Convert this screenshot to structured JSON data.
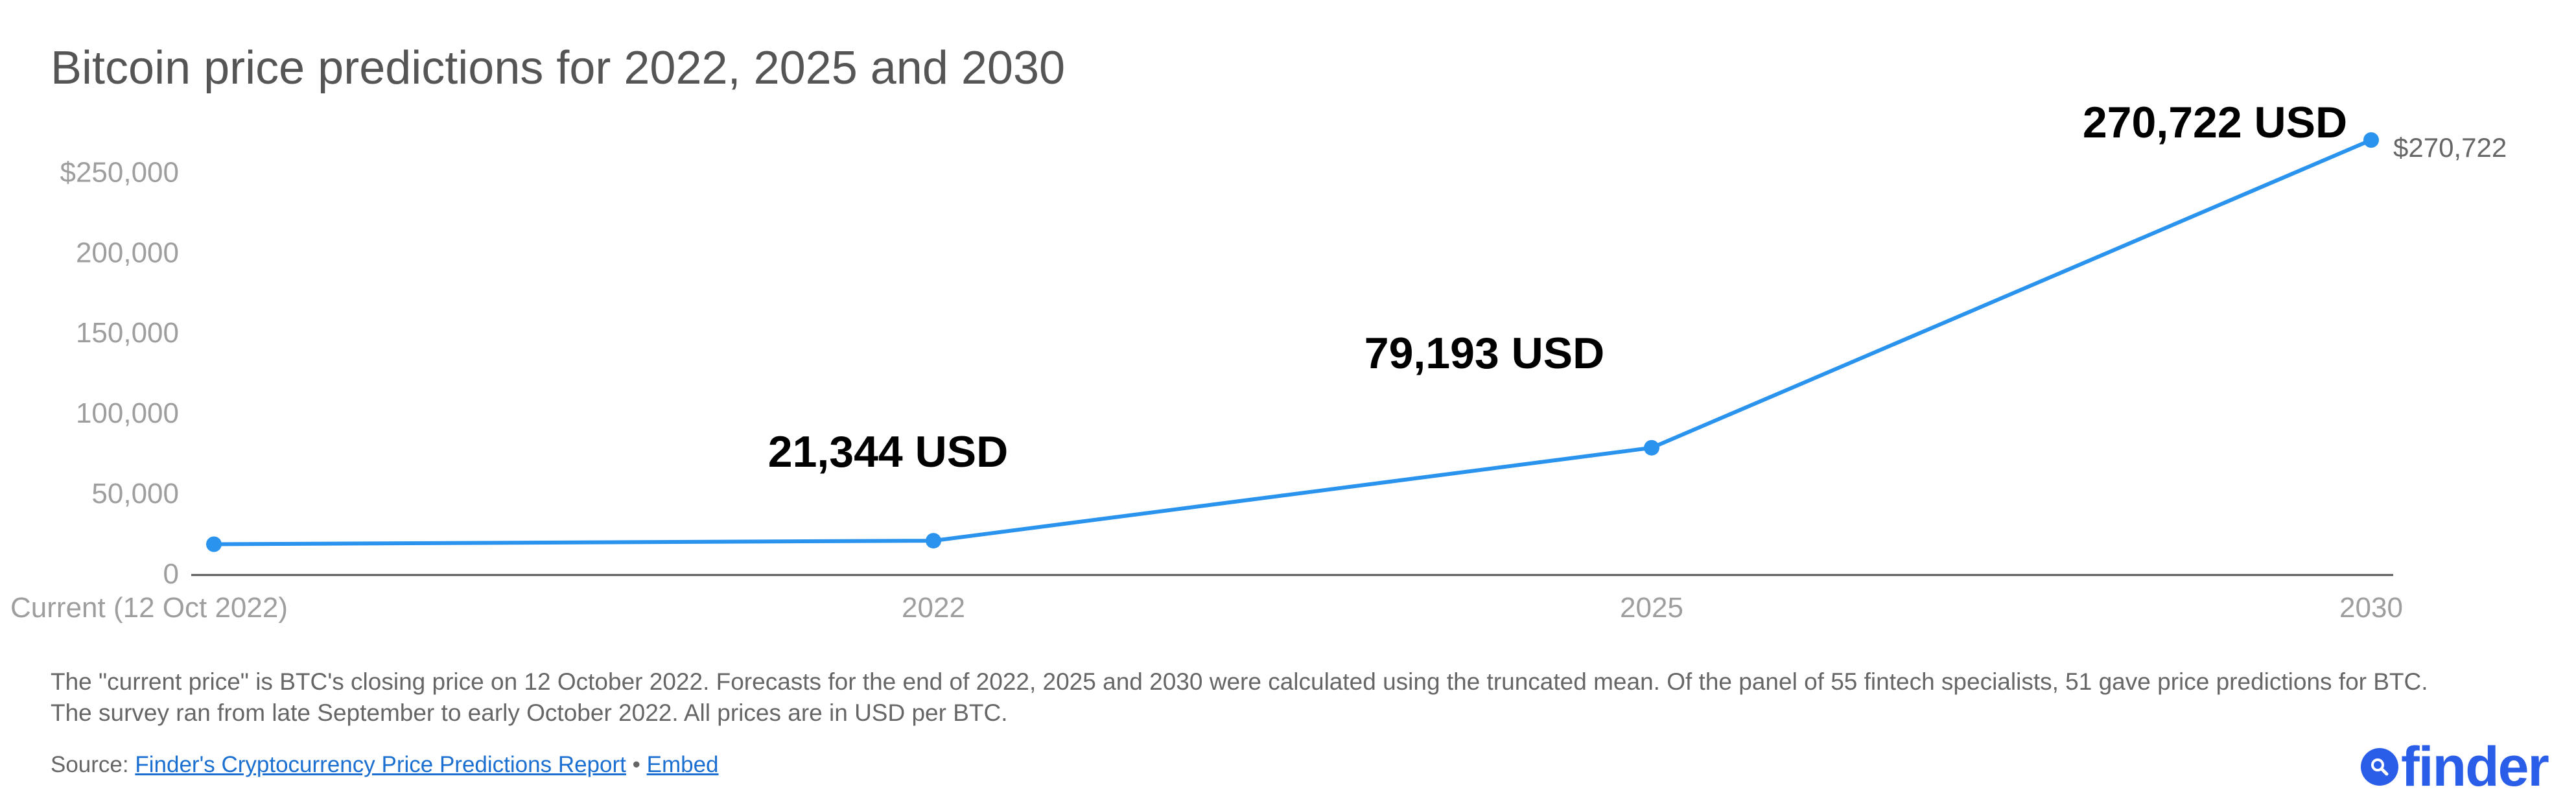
{
  "title": "Bitcoin price predictions for 2022, 2025 and 2030",
  "colors": {
    "line": "#2a93ee",
    "axis_text": "#9e9e9e",
    "baseline": "#555555",
    "link": "#1a6fd0",
    "brand": "#2a5ee8"
  },
  "chart_data": {
    "type": "line",
    "categories": [
      "Current (12 Oct 2022)",
      "2022",
      "2025",
      "2030"
    ],
    "values": [
      19155,
      21344,
      79193,
      270722
    ],
    "ylim": [
      0,
      270722
    ],
    "yticks": [
      0,
      50000,
      100000,
      150000,
      200000,
      250000
    ],
    "ytick_labels": [
      "0",
      "50,000",
      "100,000",
      "150,000",
      "200,000",
      "$250,000"
    ],
    "annotations": [
      "",
      "21,344 USD",
      "79,193 USD",
      "270,722 USD"
    ],
    "end_label": "$270,722",
    "grid": false,
    "legend": "none"
  },
  "footnote": "The \"current price\" is BTC's closing price on 12 October 2022. Forecasts for the end of 2022, 2025 and 2030 were calculated using the truncated mean. Of the panel of 55 fintech specialists, 51 gave price predictions for BTC. The survey ran from late September to early October 2022. All prices are in USD per BTC.",
  "source": {
    "prefix": "Source:",
    "link_text": "Finder's Cryptocurrency Price Predictions Report",
    "separator": "•",
    "embed_text": "Embed"
  },
  "logo": {
    "text": "finder",
    "icon": "magnifier-icon"
  }
}
